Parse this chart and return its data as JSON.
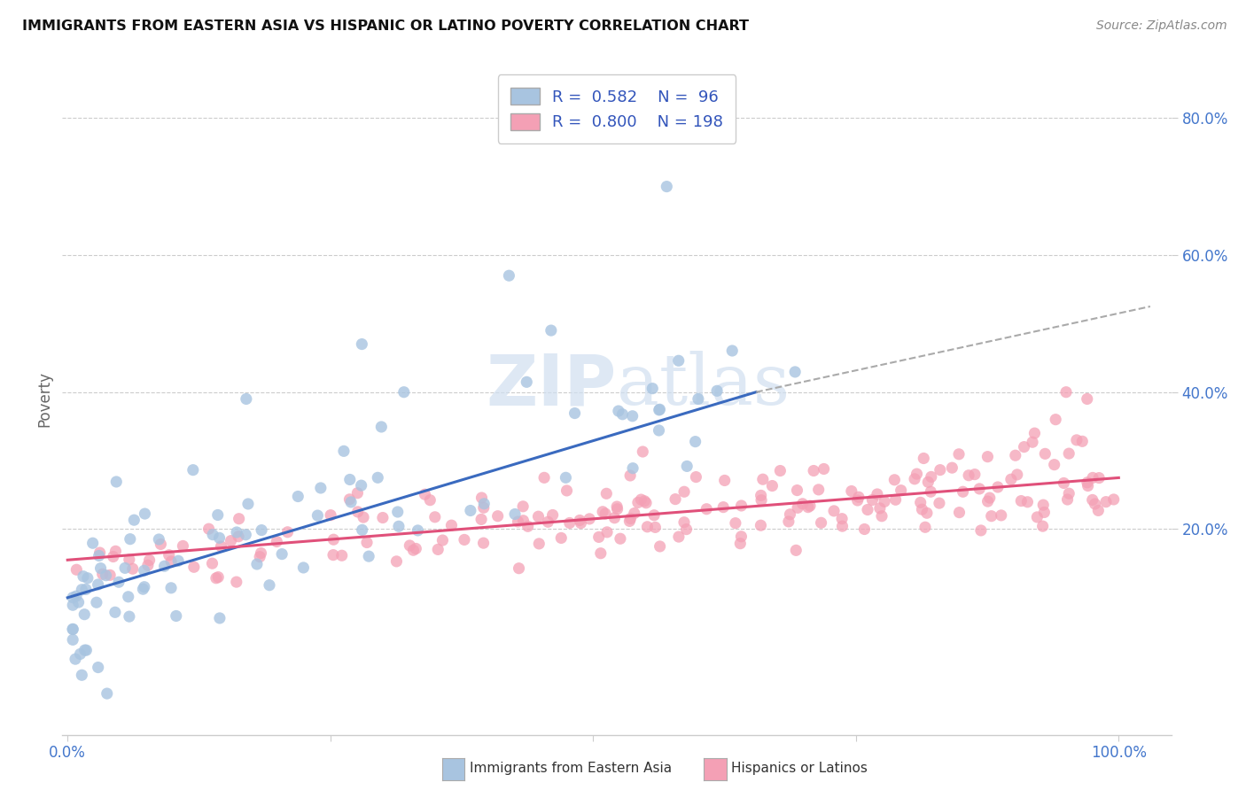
{
  "title": "IMMIGRANTS FROM EASTERN ASIA VS HISPANIC OR LATINO POVERTY CORRELATION CHART",
  "source": "Source: ZipAtlas.com",
  "ylabel": "Poverty",
  "legend_label_blue": "Immigrants from Eastern Asia",
  "legend_label_pink": "Hispanics or Latinos",
  "legend_r_blue": "0.582",
  "legend_n_blue": "96",
  "legend_r_pink": "0.800",
  "legend_n_pink": "198",
  "blue_color": "#a8c4e0",
  "pink_color": "#f4a0b5",
  "blue_line_color": "#3a6abf",
  "pink_line_color": "#e0507a",
  "dashed_color": "#aaaaaa",
  "watermark_color": "#d0dff0",
  "bg_color": "#ffffff",
  "grid_color": "#cccccc",
  "blue_line_x": [
    0.0,
    0.655
  ],
  "blue_line_y": [
    0.1,
    0.4
  ],
  "dashed_line_x": [
    0.655,
    1.03
  ],
  "dashed_line_y": [
    0.4,
    0.525
  ],
  "pink_line_x": [
    0.0,
    1.0
  ],
  "pink_line_y": [
    0.155,
    0.275
  ],
  "xlim": [
    -0.005,
    1.05
  ],
  "ylim": [
    -0.1,
    0.88
  ],
  "ytick_positions": [
    0.2,
    0.4,
    0.6,
    0.8
  ],
  "ytick_labels": [
    "20.0%",
    "40.0%",
    "60.0%",
    "80.0%"
  ],
  "xtick_positions": [
    0.0,
    0.25,
    0.5,
    0.75,
    1.0
  ],
  "xtick_labels": [
    "0.0%",
    "",
    "",
    "",
    "100.0%"
  ]
}
